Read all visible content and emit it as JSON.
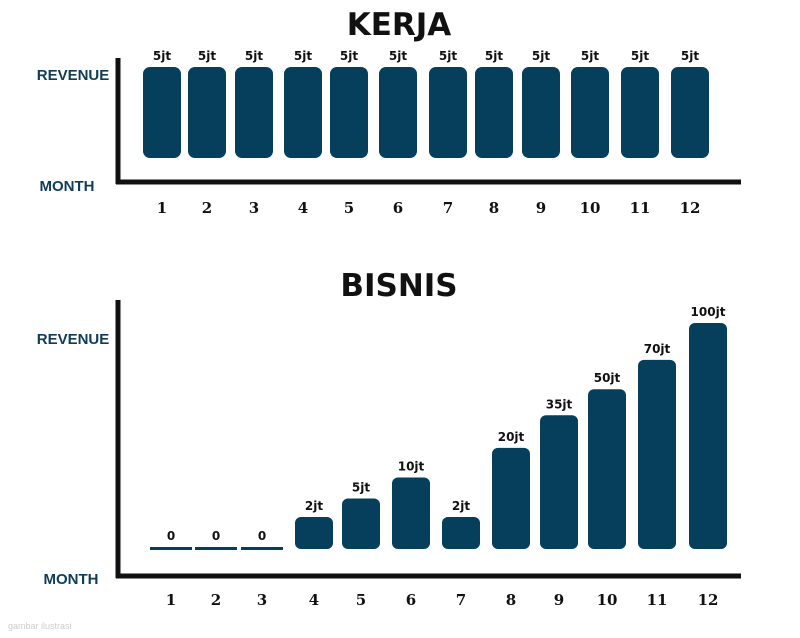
{
  "colors": {
    "bar": "#053f5c",
    "axis": "#111111"
  },
  "chart_data": [
    {
      "type": "bar",
      "title": "KERJA",
      "ylabel": "REVENUE",
      "xlabel": "MONTH",
      "categories": [
        "1",
        "2",
        "3",
        "4",
        "5",
        "6",
        "7",
        "8",
        "9",
        "10",
        "11",
        "12"
      ],
      "values": [
        5,
        5,
        5,
        5,
        5,
        5,
        5,
        5,
        5,
        5,
        5,
        5
      ],
      "labels": [
        "5jt",
        "5jt",
        "5jt",
        "5jt",
        "5jt",
        "5jt",
        "5jt",
        "5jt",
        "5jt",
        "5jt",
        "5jt",
        "5jt"
      ],
      "unit": "jt (juta)"
    },
    {
      "type": "bar",
      "title": "BISNIS",
      "ylabel": "REVENUE",
      "xlabel": "MONTH",
      "categories": [
        "1",
        "2",
        "3",
        "4",
        "5",
        "6",
        "7",
        "8",
        "9",
        "10",
        "11",
        "12"
      ],
      "values": [
        0,
        0,
        0,
        2,
        5,
        10,
        2,
        20,
        35,
        50,
        70,
        100
      ],
      "labels": [
        "0",
        "0",
        "0",
        "2jt",
        "5jt",
        "10jt",
        "2jt",
        "20jt",
        "35jt",
        "50jt",
        "70jt",
        "100jt"
      ],
      "unit": "jt (juta)"
    }
  ],
  "watermark": "gambar ilustrasi"
}
